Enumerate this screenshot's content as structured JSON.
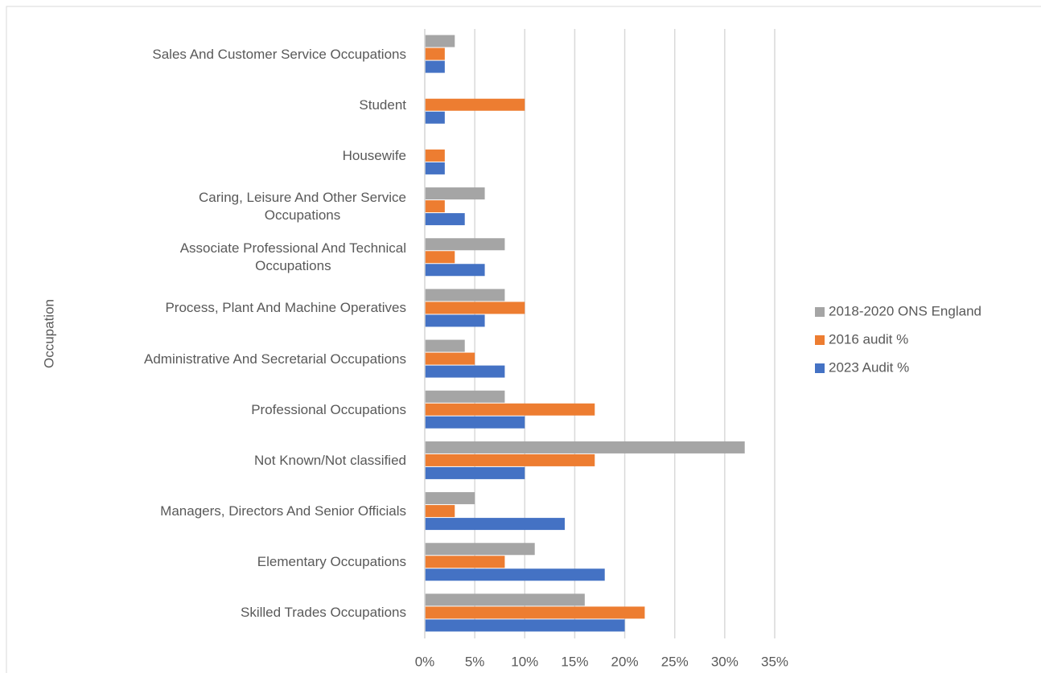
{
  "chart_data": {
    "type": "hbar",
    "y_axis_label": "Occupation",
    "categories": [
      "Sales And Customer Service Occupations",
      "Student",
      "Housewife",
      "Caring, Leisure And Other Service\nOccupations",
      "Associate Professional And Technical\nOccupations",
      "Process, Plant And Machine Operatives",
      "Administrative And Secretarial Occupations",
      "Professional Occupations",
      "Not Known/Not classified",
      "Managers, Directors And Senior Officials",
      "Elementary Occupations",
      "Skilled Trades Occupations"
    ],
    "series": [
      {
        "name": "2018-2020 ONS England",
        "color": "#a5a5a5",
        "values": [
          3,
          null,
          null,
          6,
          8,
          8,
          4,
          8,
          32,
          5,
          11,
          16
        ]
      },
      {
        "name": "2016 audit %",
        "color": "#ed7d31",
        "values": [
          2,
          10,
          2,
          2,
          3,
          10,
          5,
          17,
          17,
          3,
          8,
          22
        ]
      },
      {
        "name": "2023 Audit %",
        "color": "#4472c4",
        "values": [
          2,
          2,
          2,
          4,
          6,
          6,
          8,
          10,
          10,
          14,
          18,
          20
        ]
      }
    ],
    "xlim": [
      0,
      35
    ],
    "xticks": [
      {
        "value": 0,
        "label": "0%"
      },
      {
        "value": 5,
        "label": "5%"
      },
      {
        "value": 10,
        "label": "10%"
      },
      {
        "value": 15,
        "label": "15%"
      },
      {
        "value": 20,
        "label": "20%"
      },
      {
        "value": 25,
        "label": "25%"
      },
      {
        "value": 30,
        "label": "30%"
      },
      {
        "value": 35,
        "label": "35%"
      }
    ],
    "grid": true,
    "legend": "right"
  }
}
